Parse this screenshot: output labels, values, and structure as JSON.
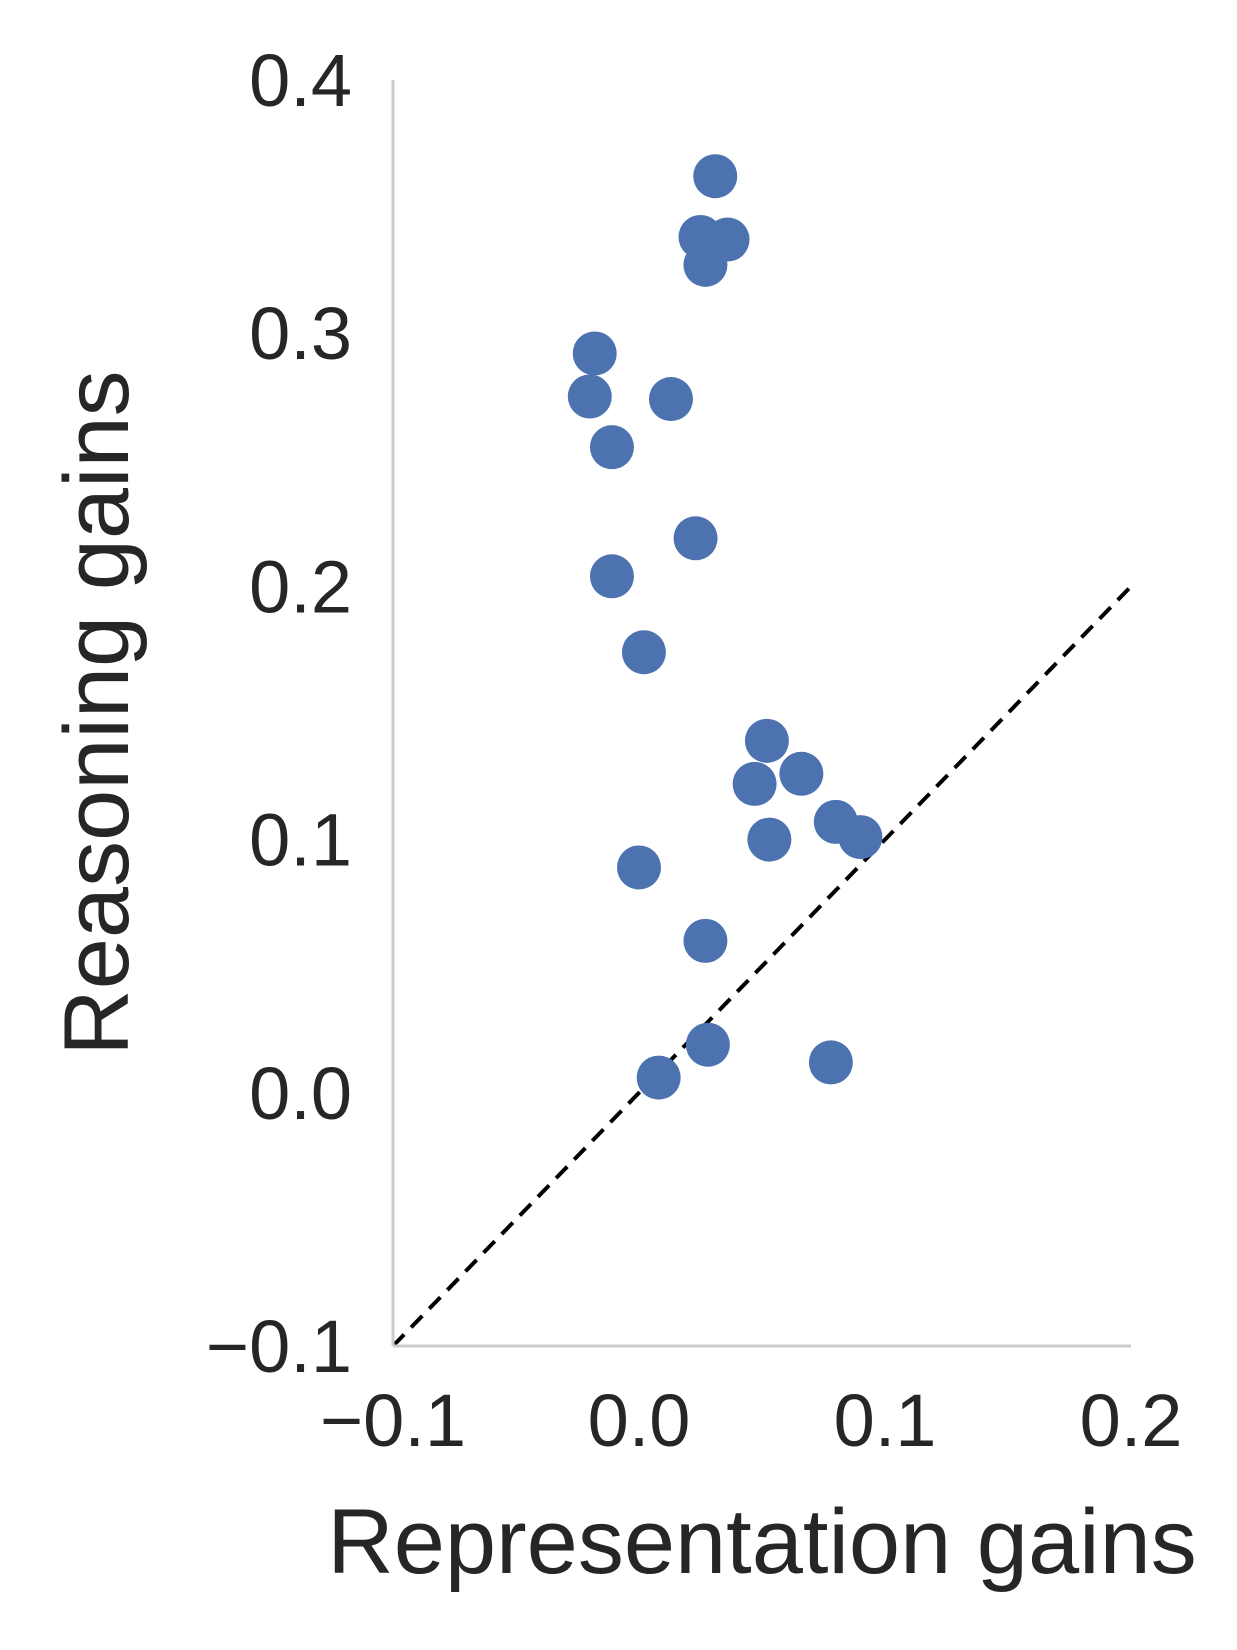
{
  "chart_data": {
    "type": "scatter",
    "xlabel": "Representation gains",
    "ylabel": "Reasoning gains",
    "xlim": [
      -0.1,
      0.2
    ],
    "ylim": [
      -0.1,
      0.4
    ],
    "xticks": [
      {
        "value": -0.1,
        "label": "−0.1"
      },
      {
        "value": 0.0,
        "label": "0.0"
      },
      {
        "value": 0.1,
        "label": "0.1"
      },
      {
        "value": 0.2,
        "label": "0.2"
      }
    ],
    "yticks": [
      {
        "value": -0.1,
        "label": "−0.1"
      },
      {
        "value": 0.0,
        "label": "0.0"
      },
      {
        "value": 0.1,
        "label": "0.1"
      },
      {
        "value": 0.2,
        "label": "0.2"
      },
      {
        "value": 0.3,
        "label": "0.3"
      },
      {
        "value": 0.4,
        "label": "0.4"
      }
    ],
    "grid": false,
    "reference_line": {
      "style": "dashed",
      "from": [
        -0.1,
        -0.1
      ],
      "to": [
        0.2,
        0.2
      ],
      "color": "#000000"
    },
    "colors": {
      "points": "#4c72b0",
      "axes": "#cccccc",
      "text": "#262626"
    },
    "points": [
      {
        "x": 0.031,
        "y": 0.362
      },
      {
        "x": 0.025,
        "y": 0.338
      },
      {
        "x": 0.036,
        "y": 0.337
      },
      {
        "x": 0.027,
        "y": 0.327
      },
      {
        "x": -0.018,
        "y": 0.292
      },
      {
        "x": -0.02,
        "y": 0.275
      },
      {
        "x": 0.013,
        "y": 0.274
      },
      {
        "x": -0.011,
        "y": 0.255
      },
      {
        "x": 0.023,
        "y": 0.219
      },
      {
        "x": -0.011,
        "y": 0.204
      },
      {
        "x": 0.002,
        "y": 0.174
      },
      {
        "x": 0.052,
        "y": 0.139
      },
      {
        "x": 0.066,
        "y": 0.126
      },
      {
        "x": 0.047,
        "y": 0.122
      },
      {
        "x": 0.08,
        "y": 0.107
      },
      {
        "x": 0.053,
        "y": 0.1
      },
      {
        "x": 0.09,
        "y": 0.101
      },
      {
        "x": 0.0,
        "y": 0.089
      },
      {
        "x": 0.027,
        "y": 0.06
      },
      {
        "x": 0.028,
        "y": 0.019
      },
      {
        "x": 0.078,
        "y": 0.012
      },
      {
        "x": 0.008,
        "y": 0.006
      }
    ]
  }
}
